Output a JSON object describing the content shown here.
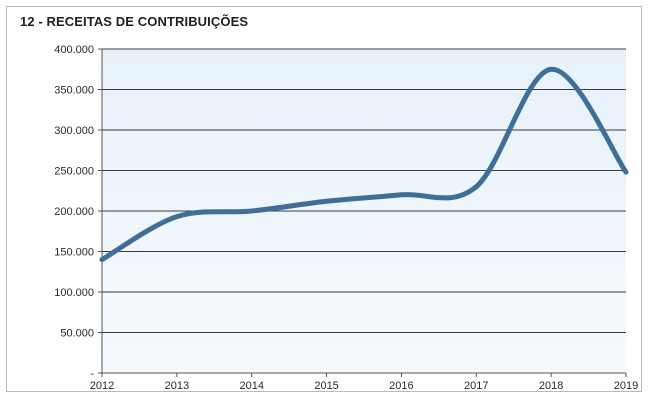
{
  "chart_data": {
    "type": "line",
    "title": "12 - RECEITAS DE CONTRIBUIÇÕES",
    "x": [
      "2012",
      "2013",
      "2014",
      "2015",
      "2016",
      "2017",
      "2018",
      "2019"
    ],
    "series": [
      {
        "values": [
          140000,
          193000,
          200000,
          212000,
          220000,
          230000,
          375000,
          248000
        ]
      }
    ],
    "ylim": [
      0,
      400000
    ],
    "yticks": [
      0,
      50000,
      100000,
      150000,
      200000,
      250000,
      300000,
      350000,
      400000
    ],
    "ytick_labels": [
      "-",
      "50.000",
      "100.000",
      "150.000",
      "200.000",
      "250.000",
      "300.000",
      "350.000",
      "400.000"
    ],
    "xlabel": "",
    "ylabel": "",
    "grid": true,
    "legend": "none",
    "colors": {
      "line": "#3f6f98",
      "plot_bg": "#eef5fb",
      "grid": "#3a3a3a"
    }
  }
}
